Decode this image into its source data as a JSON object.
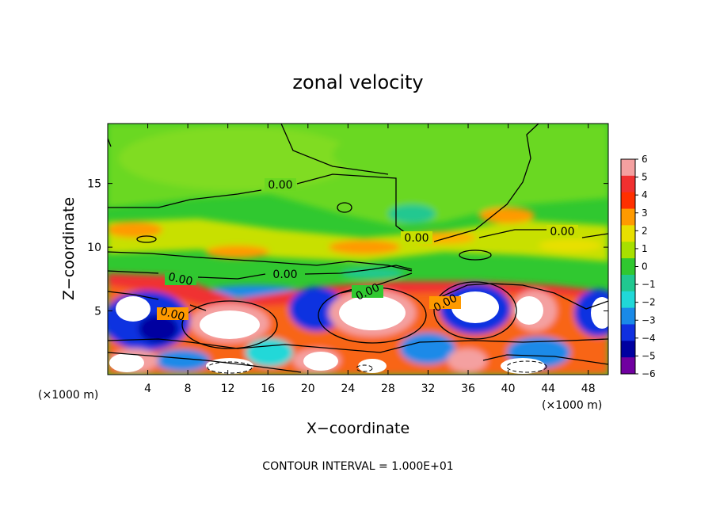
{
  "chart_data": {
    "type": "heatmap",
    "title": "zonal velocity",
    "xlabel": "X−coordinate",
    "ylabel": "Z−coordinate",
    "x_scale_note_left": "(×1000 m)",
    "x_scale_note_right": "(×1000 m)",
    "footer": "CONTOUR INTERVAL = 1.000E+01",
    "xlim": [
      0,
      50
    ],
    "ylim": [
      0,
      19.7
    ],
    "x_ticks": [
      "4",
      "8",
      "12",
      "16",
      "20",
      "24",
      "28",
      "32",
      "36",
      "40",
      "44",
      "48"
    ],
    "y_ticks": [
      "5",
      "10",
      "15"
    ],
    "colorbar": {
      "levels": [
        "6",
        "5",
        "4",
        "3",
        "2",
        "1",
        "0",
        "−1",
        "−2",
        "−3",
        "−4",
        "−5",
        "−6"
      ],
      "colors": [
        "#f4a0a0",
        "#f03030",
        "#ff3000",
        "#ff9a00",
        "#e8e000",
        "#a8e000",
        "#30c830",
        "#20c890",
        "#20d8d8",
        "#1a8ae8",
        "#1030e0",
        "#0000a0",
        "#7000a0"
      ],
      "vmin": -6,
      "vmax": 6
    },
    "contour_labels": [
      "0.00",
      "0.00",
      "0.00",
      "0.00",
      "0.00",
      "0.00",
      "0.00",
      "0.00"
    ],
    "grid": false
  }
}
